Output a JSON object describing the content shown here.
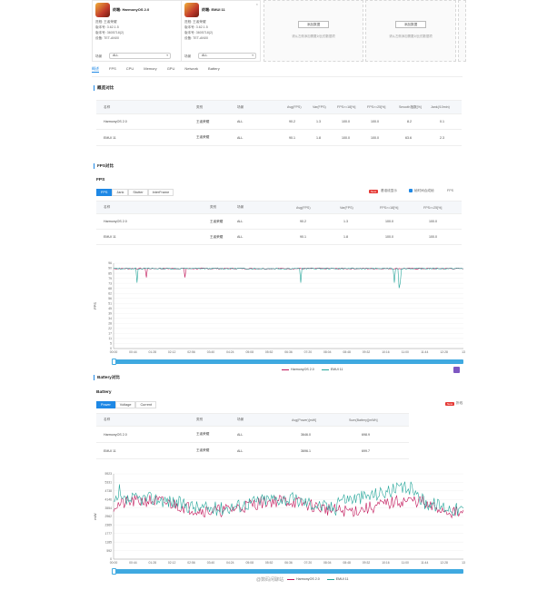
{
  "devices": [
    {
      "title": "终端: HarmonyOS 2.0",
      "info": [
        "进程: 王者荣耀",
        "版本号: 3.62.1.5",
        "版本号: 3605718(2)",
        "设备: TET-AN00"
      ],
      "场景_label": "场景",
      "select": "ALL"
    },
    {
      "title": "终端: EMUI 11",
      "info": [
        "进程: 王者荣耀",
        "版本号: 3.62.1.5",
        "版本号: 3605718(2)",
        "设备: TET-AN00"
      ],
      "场景_label": "场景",
      "select": "ALL"
    }
  ],
  "empty_slots": [
    {
      "button": "添加数据",
      "hint": "请从左侧添加需要对比的数据项"
    },
    {
      "button": "添加数据",
      "hint": "请从左侧添加需要对比的数据项"
    }
  ],
  "nav_tabs": [
    "概述",
    "FPS",
    "CPU",
    "Memory",
    "GPU",
    "Network",
    "Battery"
  ],
  "overview": {
    "title": "概览对比",
    "headers": [
      "名称",
      "类别",
      "场景",
      "Avg(FPS)",
      "Var(FPS)",
      "FPS>=18[%]",
      "FPS>=25[%]",
      "Smooth指数[%]",
      "Jank(/10min)"
    ],
    "rows": [
      [
        "HarmonyOS 2.0",
        "王者荣耀",
        "ALL",
        "90.2",
        "1.3",
        "100.0",
        "100.0",
        "8.2",
        "0.1"
      ],
      [
        "EMUI 11",
        "王者荣耀",
        "ALL",
        "90.1",
        "1.8",
        "100.0",
        "100.0",
        "63.6",
        "2.3"
      ]
    ]
  },
  "fps_section": {
    "title": "FPS对比",
    "subtitle": "FPS",
    "tabs": [
      "FPS",
      "Jank",
      "Stutter",
      "InterFrame"
    ],
    "badge": "New",
    "option1": "基准线显示",
    "option2": "帧时间合成帧",
    "option3": "FPS",
    "headers": [
      "名称",
      "类别",
      "场景",
      "Avg(FPS)",
      "Var(FPS)",
      "FPS>=18[%]",
      "FPS>=25[%]"
    ],
    "rows": [
      [
        "HarmonyOS 2.0",
        "王者荣耀",
        "ALL",
        "90.2",
        "1.3",
        "100.0",
        "100.0"
      ],
      [
        "EMUI 11",
        "王者荣耀",
        "ALL",
        "90.1",
        "1.8",
        "100.0",
        "100.0"
      ]
    ],
    "y_label": "FPS",
    "y_ticks": [
      "96",
      "90",
      "85",
      "79",
      "73",
      "68",
      "62",
      "56",
      "51",
      "45",
      "39",
      "34",
      "28",
      "22",
      "17",
      "11",
      "5",
      "0"
    ],
    "x_ticks": [
      "00:00",
      "00:44",
      "01:28",
      "02:12",
      "02:56",
      "03:40",
      "04:24",
      "05:08",
      "05:52",
      "06:36",
      "07:20",
      "08:04",
      "08:48",
      "09:32",
      "10:16",
      "11:00",
      "11:44",
      "12:28",
      "13"
    ],
    "legend": [
      "HarmonyOS 2.0",
      "EMUI 11"
    ]
  },
  "battery_section": {
    "title": "Battery对比",
    "subtitle": "Battery",
    "tabs": [
      "Power",
      "Voltage",
      "Current"
    ],
    "badge": "New",
    "option": "折线",
    "headers": [
      "名称",
      "类别",
      "场景",
      "Avg(Power)[mW]",
      "Sum(Battery)[mWh]"
    ],
    "rows": [
      [
        "HarmonyOS 2.0",
        "王者荣耀",
        "ALL",
        "3646.0",
        "698.9"
      ],
      [
        "EMUI 11",
        "王者荣耀",
        "ALL",
        "3696.1",
        "699.7"
      ]
    ],
    "y_label": "mW",
    "y_ticks": [
      "5923",
      "5331",
      "4738",
      "4146",
      "3554",
      "2962",
      "2369",
      "1777",
      "1185",
      "592",
      "0"
    ],
    "x_ticks": [
      "00:00",
      "00:44",
      "01:28",
      "02:12",
      "02:56",
      "03:40",
      "04:24",
      "05:08",
      "05:52",
      "06:36",
      "07:20",
      "08:04",
      "08:48",
      "09:32",
      "10:16",
      "11:00",
      "11:44",
      "12:28",
      "13"
    ],
    "legend": [
      "HarmonyOS 2.0",
      "EMUI 11"
    ]
  },
  "colors": {
    "accent": "#1e88e5",
    "harmony": "#c2185b",
    "emui": "#26a69a",
    "scrollbar": "#3fa9e0"
  },
  "watermark": "@数码闲聊站"
}
